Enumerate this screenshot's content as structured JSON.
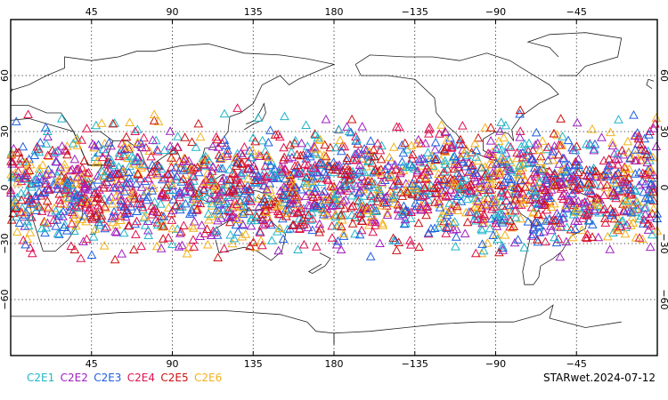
{
  "map": {
    "projection": "equirectangular",
    "central_longitude": 180,
    "lat_range": [
      -90,
      90
    ],
    "lon_ticks": [
      {
        "label": "45",
        "lon": 45
      },
      {
        "label": "90",
        "lon": 90
      },
      {
        "label": "135",
        "lon": 135
      },
      {
        "label": "180",
        "lon": 180
      },
      {
        "label": "−135",
        "lon": -135
      },
      {
        "label": "−90",
        "lon": -90
      },
      {
        "label": "−45",
        "lon": -45
      }
    ],
    "lat_ticks": [
      {
        "label": "60",
        "lat": 60
      },
      {
        "label": "30",
        "lat": 30
      },
      {
        "label": "0",
        "lat": 0
      },
      {
        "label": "−30",
        "lat": -30
      },
      {
        "label": "−60",
        "lat": -60
      }
    ],
    "grid": "dotted",
    "marker_shape": "open-triangle",
    "marker_lat_band": [
      -45,
      45
    ]
  },
  "legend": {
    "items": [
      {
        "label": "C2E1",
        "color": "#1fb5c9"
      },
      {
        "label": "C2E2",
        "color": "#a020c0"
      },
      {
        "label": "C2E3",
        "color": "#1f5fe0"
      },
      {
        "label": "C2E4",
        "color": "#e01050"
      },
      {
        "label": "C2E5",
        "color": "#cc1010"
      },
      {
        "label": "C2E6",
        "color": "#f2b21a"
      }
    ]
  },
  "stamp": "STARwet.2024-07-12"
}
